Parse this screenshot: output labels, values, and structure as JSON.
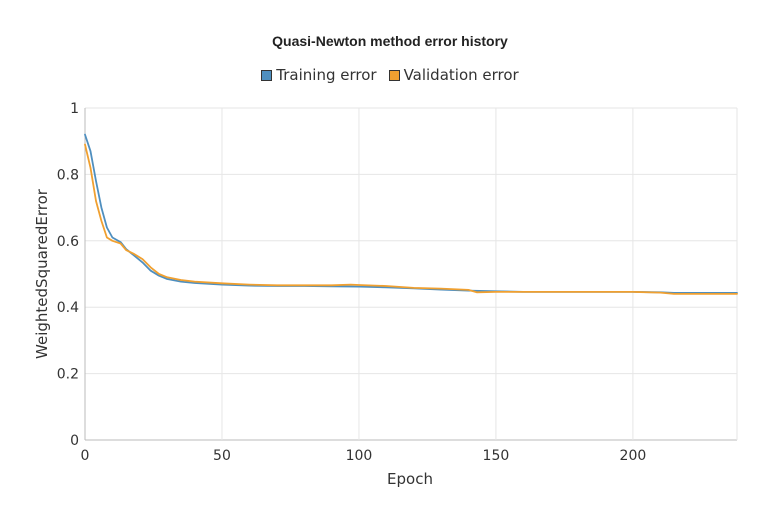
{
  "chart_data": {
    "type": "line",
    "title": "Quasi-Newton method error history",
    "xlabel": "Epoch",
    "ylabel": "WeightedSquaredError",
    "xlim": [
      0,
      238
    ],
    "ylim": [
      0,
      1
    ],
    "x_ticks": [
      0,
      50,
      100,
      150,
      200
    ],
    "y_ticks": [
      0,
      0.2,
      0.4,
      0.6,
      0.8,
      1
    ],
    "grid": true,
    "legend_position": "top-center",
    "series": [
      {
        "name": "Training error",
        "color": "#4f8fbf",
        "x": [
          0,
          2,
          4,
          6,
          8,
          10,
          13,
          15,
          18,
          21,
          24,
          27,
          30,
          35,
          40,
          50,
          60,
          70,
          80,
          90,
          100,
          110,
          120,
          130,
          140,
          150,
          160,
          180,
          200,
          210,
          215,
          238
        ],
        "y": [
          0.92,
          0.87,
          0.78,
          0.7,
          0.64,
          0.61,
          0.596,
          0.575,
          0.555,
          0.535,
          0.51,
          0.495,
          0.485,
          0.477,
          0.473,
          0.468,
          0.465,
          0.464,
          0.464,
          0.463,
          0.462,
          0.46,
          0.457,
          0.453,
          0.45,
          0.448,
          0.446,
          0.446,
          0.446,
          0.445,
          0.443,
          0.443
        ]
      },
      {
        "name": "Validation error",
        "color": "#f0a030",
        "x": [
          0,
          2,
          4,
          6,
          8,
          10,
          13,
          15,
          18,
          21,
          24,
          27,
          30,
          35,
          40,
          50,
          60,
          70,
          80,
          90,
          97,
          100,
          110,
          120,
          130,
          140,
          143,
          150,
          160,
          180,
          200,
          210,
          215,
          238
        ],
        "y": [
          0.89,
          0.82,
          0.72,
          0.66,
          0.61,
          0.6,
          0.592,
          0.572,
          0.56,
          0.545,
          0.52,
          0.5,
          0.49,
          0.482,
          0.477,
          0.472,
          0.468,
          0.466,
          0.466,
          0.466,
          0.468,
          0.467,
          0.464,
          0.458,
          0.456,
          0.452,
          0.445,
          0.446,
          0.446,
          0.446,
          0.446,
          0.444,
          0.44,
          0.44
        ]
      }
    ]
  }
}
